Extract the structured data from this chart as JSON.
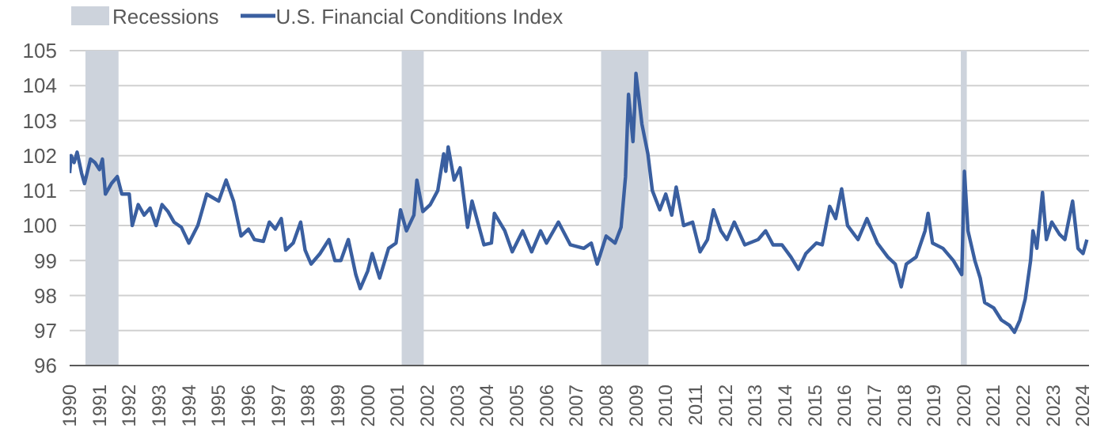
{
  "chart_data": {
    "type": "line",
    "legend": "top left",
    "grid": "y",
    "marker": "none",
    "line_style": "solid",
    "xlim": [
      1990,
      2024.2
    ],
    "xticks": [
      1990,
      1991,
      1992,
      1993,
      1994,
      1995,
      1996,
      1997,
      1998,
      1999,
      2000,
      2001,
      2002,
      2003,
      2004,
      2005,
      2006,
      2007,
      2008,
      2009,
      2010,
      2011,
      2012,
      2013,
      2014,
      2015,
      2016,
      2017,
      2018,
      2019,
      2020,
      2021,
      2022,
      2023,
      2024
    ],
    "ylim": [
      96,
      105
    ],
    "yticks": [
      96,
      97,
      98,
      99,
      100,
      101,
      102,
      103,
      104,
      105
    ],
    "bands": [
      {
        "axis": "x",
        "from": 1990.53,
        "to": 1991.64,
        "label": "Recessions",
        "color": "#cdd3dc"
      },
      {
        "axis": "x",
        "from": 2001.14,
        "to": 2001.88,
        "color": "#cdd3dc"
      },
      {
        "axis": "x",
        "from": 2007.83,
        "to": 2009.42,
        "color": "#cdd3dc"
      },
      {
        "axis": "x",
        "from": 2019.9,
        "to": 2020.1,
        "color": "#cdd3dc"
      }
    ],
    "series": [
      {
        "name": "U.S. Financial Conditions Index",
        "color": "#3a5fa0",
        "x": [
          1990.0,
          1990.05,
          1990.15,
          1990.25,
          1990.4,
          1990.5,
          1990.7,
          1990.85,
          1991.0,
          1991.1,
          1991.2,
          1991.4,
          1991.6,
          1991.75,
          1992.0,
          1992.1,
          1992.3,
          1992.5,
          1992.7,
          1992.9,
          1993.1,
          1993.3,
          1993.5,
          1993.75,
          1994.0,
          1994.3,
          1994.6,
          1994.8,
          1995.0,
          1995.25,
          1995.5,
          1995.75,
          1996.0,
          1996.2,
          1996.5,
          1996.7,
          1996.9,
          1997.1,
          1997.25,
          1997.5,
          1997.75,
          1997.9,
          1998.1,
          1998.4,
          1998.7,
          1998.9,
          1999.1,
          1999.35,
          1999.6,
          1999.75,
          2000.0,
          2000.15,
          2000.4,
          2000.7,
          2000.95,
          2001.1,
          2001.3,
          2001.55,
          2001.65,
          2001.85,
          2002.1,
          2002.35,
          2002.55,
          2002.62,
          2002.7,
          2002.9,
          2003.1,
          2003.35,
          2003.5,
          2003.9,
          2004.15,
          2004.25,
          2004.6,
          2004.85,
          2005.2,
          2005.5,
          2005.8,
          2006.0,
          2006.4,
          2006.8,
          2007.25,
          2007.5,
          2007.7,
          2008.0,
          2008.3,
          2008.5,
          2008.65,
          2008.75,
          2008.9,
          2008.95,
          2009.0,
          2009.2,
          2009.4,
          2009.55,
          2009.8,
          2010.0,
          2010.2,
          2010.35,
          2010.6,
          2010.9,
          2011.15,
          2011.4,
          2011.6,
          2011.85,
          2012.05,
          2012.3,
          2012.65,
          2013.1,
          2013.35,
          2013.6,
          2013.9,
          2014.2,
          2014.45,
          2014.7,
          2015.05,
          2015.25,
          2015.5,
          2015.7,
          2015.9,
          2016.1,
          2016.45,
          2016.75,
          2017.1,
          2017.45,
          2017.7,
          2017.9,
          2018.07,
          2018.4,
          2018.7,
          2018.8,
          2018.95,
          2019.3,
          2019.65,
          2019.93,
          2020.02,
          2020.14,
          2020.37,
          2020.55,
          2020.7,
          2021.0,
          2021.26,
          2021.53,
          2021.7,
          2021.88,
          2022.06,
          2022.24,
          2022.32,
          2022.45,
          2022.64,
          2022.77,
          2022.95,
          2023.21,
          2023.39,
          2023.65,
          2023.83,
          2024.0,
          2024.13
        ],
        "values": [
          101.5,
          102.0,
          101.8,
          102.1,
          101.5,
          101.2,
          101.9,
          101.8,
          101.6,
          101.9,
          100.9,
          101.2,
          101.4,
          100.9,
          100.9,
          100.0,
          100.6,
          100.3,
          100.5,
          100.0,
          100.6,
          100.4,
          100.1,
          99.95,
          99.5,
          100.0,
          100.9,
          100.8,
          100.7,
          101.3,
          100.7,
          99.7,
          99.9,
          99.6,
          99.55,
          100.1,
          99.9,
          100.2,
          99.3,
          99.5,
          100.1,
          99.3,
          98.9,
          99.2,
          99.6,
          99.0,
          99.0,
          99.6,
          98.6,
          98.2,
          98.7,
          99.2,
          98.5,
          99.35,
          99.5,
          100.45,
          99.85,
          100.3,
          101.3,
          100.4,
          100.6,
          101.0,
          102.05,
          101.55,
          102.25,
          101.3,
          101.65,
          99.95,
          100.7,
          99.45,
          99.5,
          100.35,
          99.85,
          99.25,
          99.85,
          99.25,
          99.85,
          99.5,
          100.1,
          99.45,
          99.35,
          99.5,
          98.9,
          99.7,
          99.5,
          99.95,
          101.4,
          103.75,
          102.4,
          103.25,
          104.35,
          102.9,
          102.05,
          101.0,
          100.45,
          100.9,
          100.3,
          101.1,
          100.0,
          100.1,
          99.25,
          99.6,
          100.45,
          99.85,
          99.6,
          100.1,
          99.45,
          99.6,
          99.85,
          99.45,
          99.45,
          99.1,
          98.75,
          99.2,
          99.5,
          99.45,
          100.55,
          100.2,
          101.05,
          100.0,
          99.6,
          100.2,
          99.5,
          99.1,
          98.9,
          98.25,
          98.9,
          99.1,
          99.85,
          100.35,
          99.5,
          99.35,
          99.0,
          98.6,
          101.55,
          99.85,
          99.0,
          98.5,
          97.8,
          97.65,
          97.3,
          97.15,
          96.95,
          97.3,
          97.9,
          99.0,
          99.85,
          99.35,
          100.95,
          99.6,
          100.1,
          99.75,
          99.6,
          100.7,
          99.35,
          99.2,
          99.6
        ]
      }
    ]
  }
}
